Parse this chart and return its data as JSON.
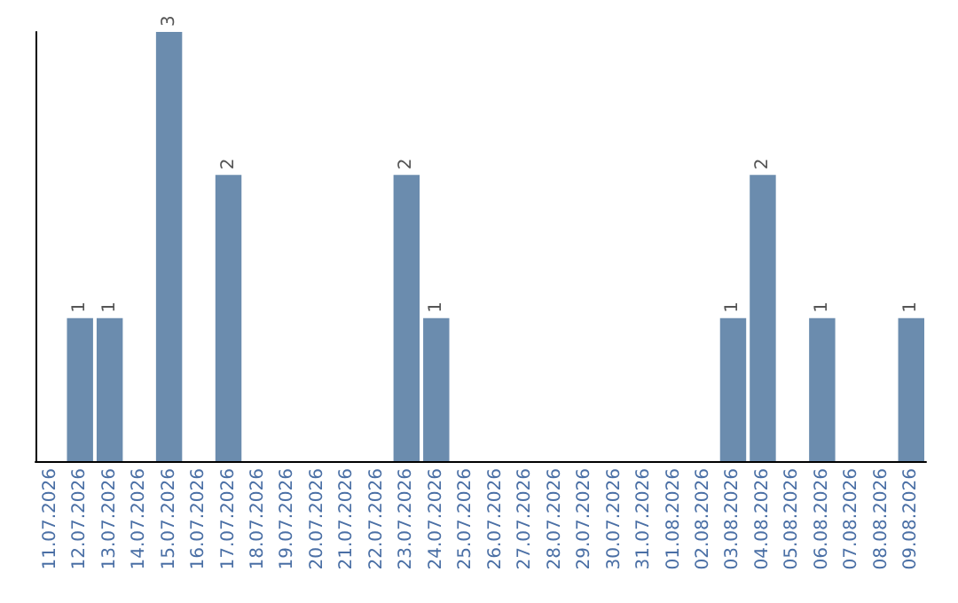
{
  "chart_data": {
    "type": "bar",
    "categories": [
      "11.07.2026",
      "12.07.2026",
      "13.07.2026",
      "14.07.2026",
      "15.07.2026",
      "16.07.2026",
      "17.07.2026",
      "18.07.2026",
      "19.07.2026",
      "20.07.2026",
      "21.07.2026",
      "22.07.2026",
      "23.07.2026",
      "24.07.2026",
      "25.07.2026",
      "26.07.2026",
      "27.07.2026",
      "28.07.2026",
      "29.07.2026",
      "30.07.2026",
      "31.07.2026",
      "01.08.2026",
      "02.08.2026",
      "03.08.2026",
      "04.08.2026",
      "05.08.2026",
      "06.08.2026",
      "07.08.2026",
      "08.08.2026",
      "09.08.2026"
    ],
    "values": [
      0,
      1,
      1,
      0,
      3,
      0,
      2,
      0,
      0,
      0,
      0,
      0,
      2,
      1,
      0,
      0,
      0,
      0,
      0,
      0,
      0,
      0,
      0,
      1,
      2,
      0,
      1,
      0,
      0,
      1
    ],
    "value_labels": [
      null,
      "1",
      "1",
      null,
      "3",
      null,
      "2",
      null,
      null,
      null,
      null,
      null,
      "2",
      "1",
      null,
      null,
      null,
      null,
      null,
      null,
      null,
      null,
      null,
      "1",
      "2",
      null,
      "1",
      null,
      null,
      "1"
    ],
    "color": "#6b8cae",
    "grid": false,
    "tick_labels": "x"
  }
}
